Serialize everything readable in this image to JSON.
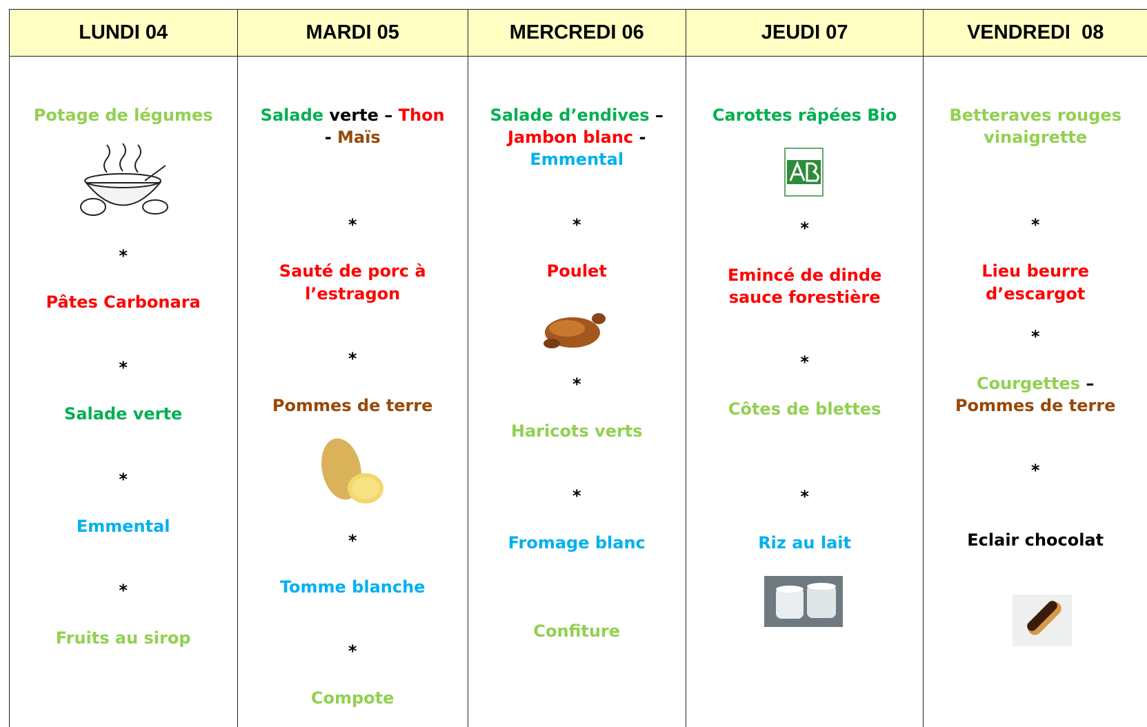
{
  "columns": [
    {
      "header": "LUNDI 04",
      "blocks": [
        [
          [
            {
              "text": "Potage de légumes",
              "color": "#92d050"
            }
          ]
        ],
        [
          [
            {
              "text": "*",
              "color": "#000000"
            }
          ]
        ],
        [
          [
            {
              "text": "Pâtes Carbonara",
              "color": "#ff0000"
            }
          ]
        ],
        [
          [
            {
              "text": "*",
              "color": "#000000"
            }
          ]
        ],
        [
          [
            {
              "text": "Salade verte",
              "color": "#00b050"
            }
          ]
        ],
        [
          [
            {
              "text": "*",
              "color": "#000000"
            }
          ]
        ],
        [
          [
            {
              "text": "Emmental",
              "color": "#00b0f0"
            }
          ]
        ],
        [
          [
            {
              "text": "*",
              "color": "#000000"
            }
          ]
        ],
        [
          [
            {
              "text": "Fruits au sirop",
              "color": "#92d050"
            }
          ]
        ]
      ]
    },
    {
      "header": "MARDI 05",
      "blocks": [
        [
          [
            {
              "text": "Salade ",
              "color": "#00b050"
            },
            {
              "text": "verte – ",
              "color": "#000000"
            },
            {
              "text": "Thon",
              "color": "#ff0000"
            }
          ],
          [
            {
              "text": "- ",
              "color": "#000000"
            },
            {
              "text": "Maïs",
              "color": "#984807"
            }
          ]
        ],
        [
          [
            {
              "text": "*",
              "color": "#000000"
            }
          ]
        ],
        [
          [
            {
              "text": "Sauté de porc à",
              "color": "#ff0000"
            }
          ],
          [
            {
              "text": "l’estragon",
              "color": "#ff0000"
            }
          ]
        ],
        [
          [
            {
              "text": "*",
              "color": "#000000"
            }
          ]
        ],
        [
          [
            {
              "text": "Pommes de terre",
              "color": "#984807"
            }
          ]
        ],
        [
          [
            {
              "text": "*",
              "color": "#000000"
            }
          ]
        ],
        [
          [
            {
              "text": "Tomme blanche",
              "color": "#00b0f0"
            }
          ]
        ],
        [
          [
            {
              "text": "*",
              "color": "#000000"
            }
          ]
        ],
        [
          [
            {
              "text": "Compote",
              "color": "#92d050"
            }
          ]
        ]
      ]
    },
    {
      "header": "MERCREDI 06",
      "blocks": [
        [
          [
            {
              "text": "Salade d’endives",
              "color": "#00b050"
            },
            {
              "text": " –",
              "color": "#000000"
            }
          ],
          [
            {
              "text": "Jambon blanc",
              "color": "#ff0000"
            },
            {
              "text": " -",
              "color": "#000000"
            }
          ],
          [
            {
              "text": "Emmental",
              "color": "#00b0f0"
            }
          ]
        ],
        [
          [
            {
              "text": "*",
              "color": "#000000"
            }
          ]
        ],
        [
          [
            {
              "text": "Poulet",
              "color": "#ff0000"
            }
          ]
        ],
        [
          [
            {
              "text": "*",
              "color": "#000000"
            }
          ]
        ],
        [
          [
            {
              "text": "Haricots verts",
              "color": "#92d050"
            }
          ]
        ],
        [
          [
            {
              "text": "*",
              "color": "#000000"
            }
          ]
        ],
        [
          [
            {
              "text": "Fromage blanc",
              "color": "#00b0f0"
            }
          ]
        ],
        [
          [
            {
              "text": "Confiture",
              "color": "#92d050"
            }
          ]
        ]
      ]
    },
    {
      "header": "JEUDI 07",
      "blocks": [
        [
          [
            {
              "text": "Carottes râpées Bio",
              "color": "#00b050"
            }
          ]
        ],
        [
          [
            {
              "text": "*",
              "color": "#000000"
            }
          ]
        ],
        [
          [
            {
              "text": "Emincé de dinde",
              "color": "#ff0000"
            }
          ],
          [
            {
              "text": "sauce forestière",
              "color": "#ff0000"
            }
          ]
        ],
        [
          [
            {
              "text": "*",
              "color": "#000000"
            }
          ]
        ],
        [
          [
            {
              "text": "Côtes de blettes",
              "color": "#92d050"
            }
          ]
        ],
        [
          [
            {
              "text": "*",
              "color": "#000000"
            }
          ]
        ],
        [
          [
            {
              "text": "Riz au lait",
              "color": "#00b0f0"
            }
          ]
        ]
      ]
    },
    {
      "header": "VENDREDI  08",
      "blocks": [
        [
          [
            {
              "text": "Betteraves rouges",
              "color": "#92d050"
            }
          ],
          [
            {
              "text": "vinaigrette",
              "color": "#92d050"
            }
          ]
        ],
        [
          [
            {
              "text": "*",
              "color": "#000000"
            }
          ]
        ],
        [
          [
            {
              "text": "Lieu beurre",
              "color": "#ff0000"
            }
          ],
          [
            {
              "text": "d’escargot",
              "color": "#ff0000"
            }
          ]
        ],
        [
          [
            {
              "text": "*",
              "color": "#000000"
            }
          ]
        ],
        [
          [
            {
              "text": "Courgettes",
              "color": "#92d050"
            },
            {
              "text": " –",
              "color": "#000000"
            }
          ],
          [
            {
              "text": "Pommes de terre",
              "color": "#984807"
            }
          ]
        ],
        [
          [
            {
              "text": "*",
              "color": "#000000"
            }
          ]
        ],
        [
          [
            {
              "text": "Eclair chocolat",
              "color": "#000000"
            }
          ]
        ]
      ]
    }
  ]
}
